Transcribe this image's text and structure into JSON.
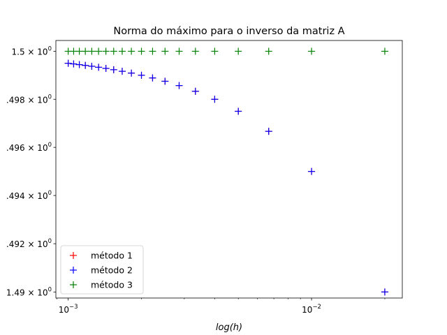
{
  "chart_data": {
    "type": "scatter",
    "title": "Norma do máximo para o inverso da matriz A",
    "xlabel": "log(h)",
    "ylabel": "",
    "xscale": "log",
    "yscale": "log",
    "xlim": [
      0.00089,
      0.0236
    ],
    "ylim": [
      1.48975,
      1.50045
    ],
    "x_ticks": [
      {
        "value": 0.001,
        "label_base": "10",
        "label_exp": "−3"
      },
      {
        "value": 0.01,
        "label_base": "10",
        "label_exp": "−2"
      }
    ],
    "y_ticks": [
      {
        "value": 1.5,
        "label_base": "1.5 × 10",
        "label_exp": "0"
      },
      {
        "value": 1.498,
        "label_base": ".498 × 10",
        "label_exp": "0"
      },
      {
        "value": 1.496,
        "label_base": ".496 × 10",
        "label_exp": "0"
      },
      {
        "value": 1.494,
        "label_base": ".494 × 10",
        "label_exp": "0"
      },
      {
        "value": 1.492,
        "label_base": ".492 × 10",
        "label_exp": "0"
      },
      {
        "value": 1.49,
        "label_base": "1.49 × 10",
        "label_exp": "0"
      }
    ],
    "x": [
      0.02,
      0.01,
      0.006667,
      0.005,
      0.004,
      0.003333,
      0.002857,
      0.0025,
      0.002222,
      0.002,
      0.001818,
      0.001667,
      0.001538,
      0.001429,
      0.001333,
      0.00125,
      0.001176,
      0.001111,
      0.001053,
      0.001
    ],
    "series": [
      {
        "name": "método 1",
        "color": "#ff0000",
        "marker": "+",
        "values": [
          1.49,
          1.495,
          1.496667,
          1.4975,
          1.498,
          1.498333,
          1.498571,
          1.49875,
          1.498889,
          1.499,
          1.499091,
          1.499167,
          1.499231,
          1.499286,
          1.499333,
          1.499375,
          1.499412,
          1.499444,
          1.499474,
          1.4995
        ]
      },
      {
        "name": "método 2",
        "color": "#0000ff",
        "marker": "+",
        "values": [
          1.49,
          1.495,
          1.496667,
          1.4975,
          1.498,
          1.498333,
          1.498571,
          1.49875,
          1.498889,
          1.499,
          1.499091,
          1.499167,
          1.499231,
          1.499286,
          1.499333,
          1.499375,
          1.499412,
          1.499444,
          1.499474,
          1.4995
        ]
      },
      {
        "name": "método 3",
        "color": "#008000",
        "marker": "+",
        "values": [
          1.5,
          1.5,
          1.5,
          1.5,
          1.5,
          1.5,
          1.5,
          1.5,
          1.5,
          1.5,
          1.5,
          1.5,
          1.5,
          1.5,
          1.5,
          1.5,
          1.5,
          1.5,
          1.5,
          1.5
        ]
      }
    ],
    "legend": {
      "position": "lower-left"
    },
    "grid": false
  }
}
